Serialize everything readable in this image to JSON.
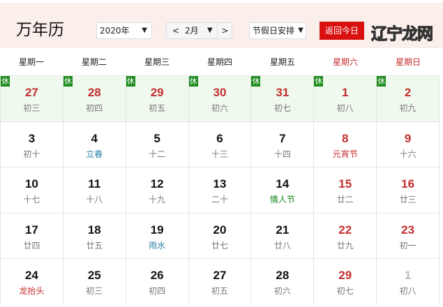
{
  "header": {
    "title": "万年历",
    "year": "2020年",
    "month": "2月",
    "prev": "<",
    "next": ">",
    "holiday_select": "节假日安排",
    "today_button": "返回今日"
  },
  "weekdays": [
    "星期一",
    "星期二",
    "星期三",
    "星期四",
    "星期五",
    "星期六",
    "星期日"
  ],
  "rest_badge": "休",
  "colors": {
    "accent": "#d8100f",
    "holiday_bg": "#f0f9ee",
    "rest_badge": "#1a8a1a"
  },
  "weeks": [
    [
      {
        "d": "27",
        "l": "初三",
        "rest": true,
        "red": true
      },
      {
        "d": "28",
        "l": "初四",
        "rest": true,
        "red": true
      },
      {
        "d": "29",
        "l": "初五",
        "rest": true,
        "red": true
      },
      {
        "d": "30",
        "l": "初六",
        "rest": true,
        "red": true
      },
      {
        "d": "31",
        "l": "初七",
        "rest": true,
        "red": true
      },
      {
        "d": "1",
        "l": "初八",
        "rest": true,
        "red": true
      },
      {
        "d": "2",
        "l": "初九",
        "rest": true,
        "red": true
      }
    ],
    [
      {
        "d": "3",
        "l": "初十"
      },
      {
        "d": "4",
        "l": "立春",
        "lt": "blue"
      },
      {
        "d": "5",
        "l": "十二"
      },
      {
        "d": "6",
        "l": "十三"
      },
      {
        "d": "7",
        "l": "十四"
      },
      {
        "d": "8",
        "l": "元宵节",
        "lt": "redt",
        "red": true
      },
      {
        "d": "9",
        "l": "十六",
        "red": true
      }
    ],
    [
      {
        "d": "10",
        "l": "十七"
      },
      {
        "d": "11",
        "l": "十八"
      },
      {
        "d": "12",
        "l": "十九"
      },
      {
        "d": "13",
        "l": "二十"
      },
      {
        "d": "14",
        "l": "情人节",
        "lt": "green"
      },
      {
        "d": "15",
        "l": "廿二",
        "red": true
      },
      {
        "d": "16",
        "l": "廿三",
        "red": true
      }
    ],
    [
      {
        "d": "17",
        "l": "廿四"
      },
      {
        "d": "18",
        "l": "廿五"
      },
      {
        "d": "19",
        "l": "雨水",
        "lt": "blue"
      },
      {
        "d": "20",
        "l": "廿七"
      },
      {
        "d": "21",
        "l": "廿八"
      },
      {
        "d": "22",
        "l": "廿九",
        "red": true
      },
      {
        "d": "23",
        "l": "初一",
        "red": true
      }
    ],
    [
      {
        "d": "24",
        "l": "龙抬头",
        "lt": "redt"
      },
      {
        "d": "25",
        "l": "初三"
      },
      {
        "d": "26",
        "l": "初四"
      },
      {
        "d": "27",
        "l": "初五"
      },
      {
        "d": "28",
        "l": "初六"
      },
      {
        "d": "29",
        "l": "初七",
        "red": true
      },
      {
        "d": "1",
        "l": "初八",
        "other": true
      }
    ]
  ],
  "watermark": "辽宁龙网"
}
